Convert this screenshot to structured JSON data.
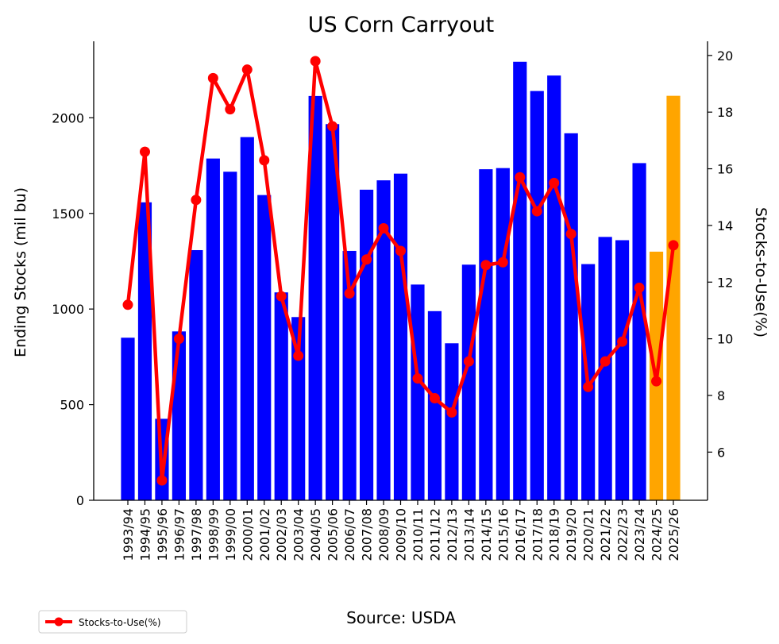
{
  "chart_data": {
    "type": "bar",
    "title": "US Corn Carryout",
    "ylabel": "Ending Stocks (mil bu)",
    "y2label": "Stocks-to-Use(%)",
    "source": "Source: USDA",
    "ylim": [
      0,
      2400
    ],
    "y2lim": [
      4.3,
      20.5
    ],
    "yticks": [
      0,
      500,
      1000,
      1500,
      2000
    ],
    "y2ticks": [
      6,
      8,
      10,
      12,
      14,
      16,
      18,
      20
    ],
    "categories": [
      "1993/94",
      "1994/95",
      "1995/96",
      "1996/97",
      "1997/98",
      "1998/99",
      "1999/00",
      "2000/01",
      "2001/02",
      "2002/03",
      "2003/04",
      "2004/05",
      "2005/06",
      "2006/07",
      "2007/08",
      "2008/09",
      "2009/10",
      "2010/11",
      "2011/12",
      "2012/13",
      "2013/14",
      "2014/15",
      "2015/16",
      "2016/17",
      "2017/18",
      "2018/19",
      "2019/20",
      "2020/21",
      "2021/22",
      "2022/23",
      "2023/24",
      "2024/25",
      "2025/26"
    ],
    "series": [
      {
        "kind": "bar",
        "values": [
          850,
          1558,
          426,
          883,
          1308,
          1787,
          1718,
          1899,
          1596,
          1087,
          958,
          2114,
          1967,
          1304,
          1624,
          1673,
          1708,
          1128,
          989,
          821,
          1232,
          1731,
          1737,
          2293,
          2140,
          2221,
          1919,
          1235,
          1377,
          1360,
          1763,
          1300,
          2115
        ],
        "colors": [
          "#0000ff",
          "#0000ff",
          "#0000ff",
          "#0000ff",
          "#0000ff",
          "#0000ff",
          "#0000ff",
          "#0000ff",
          "#0000ff",
          "#0000ff",
          "#0000ff",
          "#0000ff",
          "#0000ff",
          "#0000ff",
          "#0000ff",
          "#0000ff",
          "#0000ff",
          "#0000ff",
          "#0000ff",
          "#0000ff",
          "#0000ff",
          "#0000ff",
          "#0000ff",
          "#0000ff",
          "#0000ff",
          "#0000ff",
          "#0000ff",
          "#0000ff",
          "#0000ff",
          "#0000ff",
          "#0000ff",
          "#ffa500",
          "#ffa500"
        ]
      },
      {
        "kind": "line",
        "name": "Stocks-to-Use(%)",
        "axis": "right",
        "color": "#ff0000",
        "values": [
          11.2,
          16.6,
          5.0,
          10.0,
          14.9,
          19.2,
          18.1,
          19.5,
          16.3,
          11.5,
          9.4,
          19.8,
          17.5,
          11.6,
          12.8,
          13.9,
          13.1,
          8.6,
          7.9,
          7.4,
          9.2,
          12.6,
          12.7,
          15.7,
          14.5,
          15.5,
          13.7,
          8.3,
          9.2,
          9.9,
          11.8,
          8.5,
          13.3
        ]
      }
    ],
    "legend": {
      "position": "bottom-left",
      "label": "Stocks-to-Use(%)"
    },
    "grid": false
  }
}
